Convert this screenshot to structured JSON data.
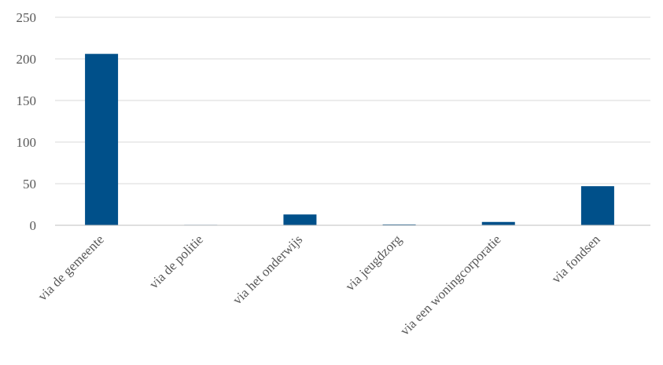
{
  "chart_data": {
    "type": "bar",
    "categories": [
      "via de gemeente",
      "via de politie",
      "via het onderwijs",
      "via jeugdzorg",
      "via een woningcorporatie",
      "via fondsen"
    ],
    "values": [
      206,
      0,
      13,
      1,
      4,
      47
    ],
    "ylim": [
      0,
      250
    ],
    "yticks": [
      "0",
      "50",
      "100",
      "150",
      "200",
      "250"
    ],
    "grid": true,
    "legend": "none",
    "colors": {
      "bar": "#00508a",
      "grid": "#d9d9d9",
      "axis": "#bfbfbf",
      "text": "#595959"
    }
  }
}
